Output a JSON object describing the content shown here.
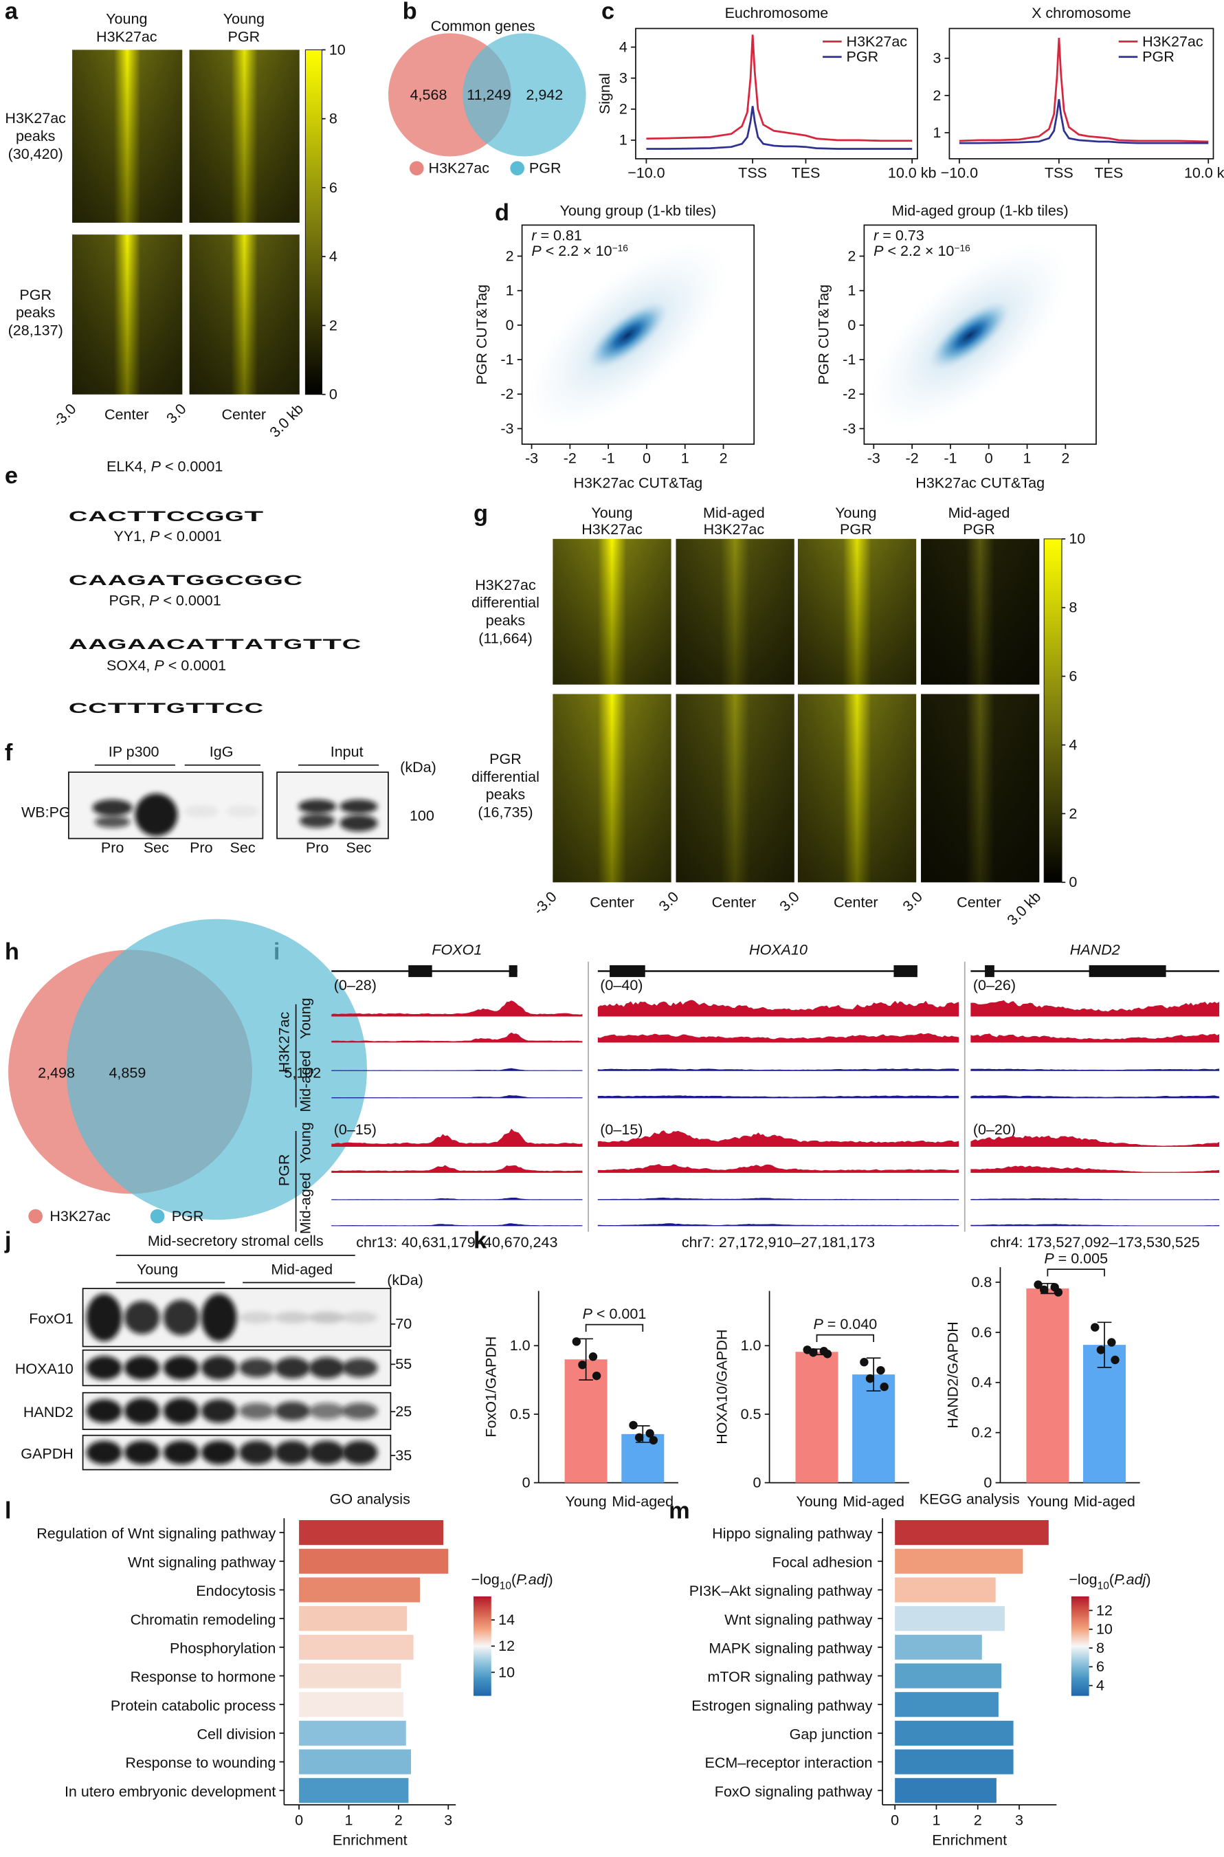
{
  "panel_labels": [
    "a",
    "b",
    "c",
    "d",
    "e",
    "f",
    "g",
    "h",
    "i",
    "j",
    "k",
    "l",
    "m"
  ],
  "a": {
    "columns": [
      [
        "Young",
        "H3K27ac"
      ],
      [
        "Young",
        "PGR"
      ]
    ],
    "rows": [
      [
        "H3K27ac",
        "peaks",
        "(30,420)"
      ],
      [
        "PGR",
        "peaks",
        "(28,137)"
      ]
    ],
    "x_labels": [
      "-3.0",
      "Center",
      "3.0",
      "Center",
      "3.0 kb"
    ],
    "colorbar": {
      "lim": [
        0,
        10
      ],
      "ticks": [
        0,
        2,
        4,
        6,
        8,
        10
      ]
    }
  },
  "b": {
    "title": "Common genes",
    "values": [
      "4,568",
      "11,249",
      "2,942"
    ],
    "legend": [
      "H3K27ac",
      "PGR"
    ]
  },
  "d": {
    "plots": [
      {
        "title": "Young group (1-kb tiles)",
        "r": "r",
        "r_text": " = 0.81",
        "p": "P",
        "p_text": " < 2.2 × 10",
        "p_exp": "−16"
      },
      {
        "title": "Mid-aged group (1-kb tiles)",
        "r": "r",
        "r_text": " = 0.73",
        "p": "P",
        "p_text": " < 2.2 × 10",
        "p_exp": "−16"
      }
    ],
    "xlabel": "H3K27ac CUT&Tag",
    "ylabel": "PGR CUT&Tag",
    "xlim": [
      -3.25,
      2.8
    ],
    "ylim": [
      -3.45,
      2.9
    ],
    "xticks": [
      -3,
      -2,
      -1,
      0,
      1,
      2
    ],
    "yticks": [
      -3,
      -2,
      -1,
      0,
      1,
      2
    ]
  },
  "e": {
    "motifs": [
      {
        "title": "ELK4, ",
        "p": "P",
        "p_text": " < 0.0001",
        "logo": [
          "C",
          "A",
          "C",
          "T",
          "T",
          "C",
          "C",
          "G",
          "G",
          "T"
        ]
      },
      {
        "title": "YY1, ",
        "p": "P",
        "p_text": " < 0.0001",
        "logo": [
          "C",
          "A",
          "A",
          "G",
          "A",
          "T",
          "G",
          "G",
          "C",
          "G",
          "G",
          "C"
        ]
      },
      {
        "title": "PGR, ",
        "p": "P",
        "p_text": " < 0.0001",
        "logo": [
          "A",
          "A",
          "G",
          "A",
          "A",
          "C",
          "A",
          "T",
          "T",
          "A",
          "T",
          "G",
          "T",
          "T",
          "C"
        ]
      },
      {
        "title": "SOX4, ",
        "p": "P",
        "p_text": " < 0.0001",
        "logo": [
          "C",
          "C",
          "T",
          "T",
          "T",
          "G",
          "T",
          "T",
          "C",
          "C"
        ]
      }
    ]
  },
  "f": {
    "groups": [
      "IP p300",
      "IgG",
      "Input"
    ],
    "unit": "(kDa)",
    "row_label": "WB:PGR",
    "marker": "100",
    "lanes": [
      "Pro",
      "Sec",
      "Pro",
      "Sec",
      "Pro",
      "Sec"
    ]
  },
  "g": {
    "columns": [
      [
        "Young",
        "H3K27ac"
      ],
      [
        "Mid-aged",
        "H3K27ac"
      ],
      [
        "Young",
        "PGR"
      ],
      [
        "Mid-aged",
        "PGR"
      ]
    ],
    "rows": [
      [
        "H3K27ac",
        "differential",
        "peaks",
        "(11,664)"
      ],
      [
        "PGR",
        "differential",
        "peaks",
        "(16,735)"
      ]
    ],
    "x_labels": [
      "-3.0",
      "Center",
      "3.0",
      "Center",
      "3.0",
      "Center",
      "3.0",
      "Center",
      "3.0 kb"
    ],
    "colorbar": {
      "lim": [
        0,
        10
      ],
      "ticks": [
        0,
        2,
        4,
        6,
        8,
        10
      ]
    }
  },
  "h": {
    "values": [
      "2,498",
      "4,859",
      "5,102"
    ],
    "legend": [
      "H3K27ac",
      "PGR"
    ]
  },
  "i": {
    "genes": [
      "FOXO1",
      "HOXA10",
      "HAND2"
    ],
    "ranges": [
      [
        "(0–28)",
        "(0–15)"
      ],
      [
        "(0–40)",
        "(0–15)"
      ],
      [
        "(0–26)",
        "(0–20)"
      ]
    ],
    "coords": [
      "chr13: 40,631,179–40,670,243",
      "chr7: 27,172,910–27,181,173",
      "chr4: 173,527,092–173,530,525"
    ],
    "marks": [
      "H3K27ac",
      "PGR"
    ],
    "groups": [
      "Young",
      "Mid-aged"
    ]
  },
  "j": {
    "title": "Mid-secretory stromal cells",
    "groups": [
      "Young",
      "Mid-aged"
    ],
    "unit": "(kDa)",
    "proteins": [
      "FoxO1",
      "HOXA10",
      "HAND2",
      "GAPDH"
    ],
    "markers": [
      "70",
      "55",
      "25",
      "35"
    ]
  },
  "chart_data": [
    {
      "type": "line",
      "title": "Euchromosome",
      "ylabel": "Signal",
      "x": [
        -10,
        -8,
        -6,
        -4,
        -2,
        -1,
        -0.5,
        -0.2,
        0,
        0.2,
        0.5,
        1,
        2,
        3,
        4,
        5,
        6,
        8,
        10,
        12,
        15
      ],
      "xlim": [
        -11,
        15.5
      ],
      "ylim": [
        0.4,
        4.6
      ],
      "xticks": [
        {
          "value": -10,
          "label": "−10.0"
        },
        {
          "value": 0,
          "label": "TSS"
        },
        {
          "value": 5,
          "label": "TES"
        },
        {
          "value": 15,
          "label": "10.0 kb"
        }
      ],
      "yticks": [
        1,
        2,
        3,
        4
      ],
      "legend": "upper right",
      "series": [
        {
          "name": "H3K27ac",
          "color": "#d7263d",
          "values": [
            1.05,
            1.06,
            1.08,
            1.1,
            1.2,
            1.45,
            1.9,
            3.0,
            4.4,
            3.2,
            2.0,
            1.5,
            1.3,
            1.25,
            1.2,
            1.15,
            1.05,
            1.0,
            1.0,
            0.98,
            0.98
          ]
        },
        {
          "name": "PGR",
          "color": "#2e3192",
          "values": [
            0.72,
            0.72,
            0.73,
            0.74,
            0.78,
            0.88,
            1.1,
            1.6,
            2.1,
            1.6,
            1.1,
            0.88,
            0.82,
            0.8,
            0.8,
            0.78,
            0.74,
            0.72,
            0.72,
            0.72,
            0.72
          ]
        }
      ]
    },
    {
      "type": "line",
      "title": "X chromosome",
      "x": [
        -10,
        -8,
        -6,
        -4,
        -2,
        -1,
        -0.5,
        -0.2,
        0,
        0.2,
        0.5,
        1,
        2,
        3,
        4,
        5,
        6,
        8,
        10,
        12,
        15
      ],
      "xlim": [
        -11,
        15.5
      ],
      "ylim": [
        0.3,
        3.8
      ],
      "xticks": [
        {
          "value": -10,
          "label": "−10.0"
        },
        {
          "value": 0,
          "label": "TSS"
        },
        {
          "value": 5,
          "label": "TES"
        },
        {
          "value": 15,
          "label": "10.0 kb"
        }
      ],
      "yticks": [
        1,
        2,
        3
      ],
      "legend": "upper right",
      "series": [
        {
          "name": "H3K27ac",
          "color": "#d7263d",
          "values": [
            0.78,
            0.8,
            0.8,
            0.82,
            0.9,
            1.1,
            1.5,
            2.5,
            3.55,
            2.6,
            1.6,
            1.15,
            0.95,
            0.9,
            0.88,
            0.85,
            0.8,
            0.78,
            0.78,
            0.78,
            0.76
          ]
        },
        {
          "name": "PGR",
          "color": "#2e3192",
          "values": [
            0.72,
            0.72,
            0.73,
            0.74,
            0.76,
            0.85,
            1.05,
            1.5,
            1.9,
            1.5,
            1.05,
            0.85,
            0.8,
            0.78,
            0.76,
            0.76,
            0.74,
            0.72,
            0.72,
            0.72,
            0.72
          ]
        }
      ]
    },
    {
      "type": "bar",
      "ylabel": "FoxO1/GAPDH",
      "categories": [
        "Young",
        "Mid-aged"
      ],
      "values": [
        0.9,
        0.355
      ],
      "errors": [
        0.15,
        0.06
      ],
      "points": [
        [
          1.03,
          0.92,
          0.86,
          0.78
        ],
        [
          0.42,
          0.36,
          0.33,
          0.31
        ]
      ],
      "colors": [
        "#f4817c",
        "#5ba8f2"
      ],
      "ylim": [
        0,
        1.4
      ],
      "yticks": [
        0,
        0.5,
        {
          "value": 1,
          "label": "1.0"
        }
      ],
      "annotation": {
        "p": "P",
        "text": " < 0.001"
      }
    },
    {
      "type": "bar",
      "ylabel": "HOXA10/GAPDH",
      "categories": [
        "Young",
        "Mid-aged"
      ],
      "values": [
        0.955,
        0.79
      ],
      "errors": [
        0.02,
        0.12
      ],
      "points": [
        [
          0.97,
          0.96,
          0.95,
          0.94
        ],
        [
          0.88,
          0.82,
          0.76,
          0.7
        ]
      ],
      "colors": [
        "#f4817c",
        "#5ba8f2"
      ],
      "ylim": [
        0,
        1.4
      ],
      "yticks": [
        0,
        0.5,
        {
          "value": 1,
          "label": "1.0"
        }
      ],
      "annotation": {
        "p": "P",
        "text": " = 0.040"
      }
    },
    {
      "type": "bar",
      "ylabel": "HAND2/GAPDH",
      "categories": [
        "Young",
        "Mid-aged"
      ],
      "values": [
        0.775,
        0.55
      ],
      "errors": [
        0.02,
        0.09
      ],
      "points": [
        [
          0.79,
          0.78,
          0.77,
          0.76
        ],
        [
          0.62,
          0.56,
          0.53,
          0.49
        ]
      ],
      "colors": [
        "#f4817c",
        "#5ba8f2"
      ],
      "ylim": [
        0,
        0.86
      ],
      "yticks": [
        0,
        0.2,
        0.4,
        0.6,
        0.8
      ],
      "annotation": {
        "p": "P",
        "text": " = 0.005"
      }
    },
    {
      "type": "hbar",
      "title": "GO analysis",
      "xlabel": "Enrichment",
      "categories": [
        "Regulation of Wnt signaling pathway",
        "Wnt signaling pathway",
        "Endocytosis",
        "Chromatin remodeling",
        "Phosphorylation",
        "Response to hormone",
        "Protein catabolic process",
        "Cell division",
        "Response to wounding",
        "In utero embryonic development"
      ],
      "values": [
        2.9,
        3.0,
        2.43,
        2.17,
        2.3,
        2.05,
        2.1,
        2.15,
        2.25,
        2.2
      ],
      "color_values": [
        15.2,
        14.2,
        13.8,
        12.7,
        12.6,
        12.4,
        12.2,
        10.6,
        10.4,
        9.6
      ],
      "xlim": [
        -0.3,
        3.15
      ],
      "xticks": [
        0,
        1,
        2,
        3
      ],
      "colorbar": {
        "title": {
          "prefix": "−log",
          "sub": "10",
          "open": "(",
          "italic": "P.adj",
          "close": ")"
        },
        "lim": [
          8.2,
          15.8
        ],
        "ticks": [
          10,
          12,
          14
        ],
        "colors": [
          "#2166ac",
          "#4393c3",
          "#92c5de",
          "#f7f7f7",
          "#f4a582",
          "#d6604d",
          "#b2182b"
        ]
      }
    },
    {
      "type": "hbar",
      "title": "KEGG analysis",
      "xlabel": "Enrichment",
      "categories": [
        "Hippo signaling pathway",
        "Focal adhesion",
        "PI3K–Akt signaling pathway",
        "Wnt signaling pathway",
        "MAPK signaling pathway",
        "mTOR signaling pathway",
        "Estrogen signaling pathway",
        "Gap junction",
        "ECM–receptor interaction",
        "FoxO signaling pathway"
      ],
      "values": [
        3.71,
        3.09,
        2.43,
        2.65,
        2.1,
        2.57,
        2.5,
        2.86,
        2.86,
        2.45
      ],
      "color_values": [
        12.8,
        10.2,
        9.4,
        7.4,
        6.0,
        5.2,
        4.6,
        4.3,
        4.1,
        3.8
      ],
      "xlim": [
        -0.3,
        3.9
      ],
      "xticks": [
        0,
        1,
        2,
        3
      ],
      "colorbar": {
        "title": {
          "prefix": "−log",
          "sub": "10",
          "open": "(",
          "italic": "P.adj",
          "close": ")"
        },
        "lim": [
          2.9,
          13.5
        ],
        "ticks": [
          4,
          6,
          8,
          10,
          12
        ],
        "colors": [
          "#2166ac",
          "#4393c3",
          "#92c5de",
          "#f7f7f7",
          "#f4a582",
          "#d6604d",
          "#b2182b"
        ]
      }
    }
  ]
}
